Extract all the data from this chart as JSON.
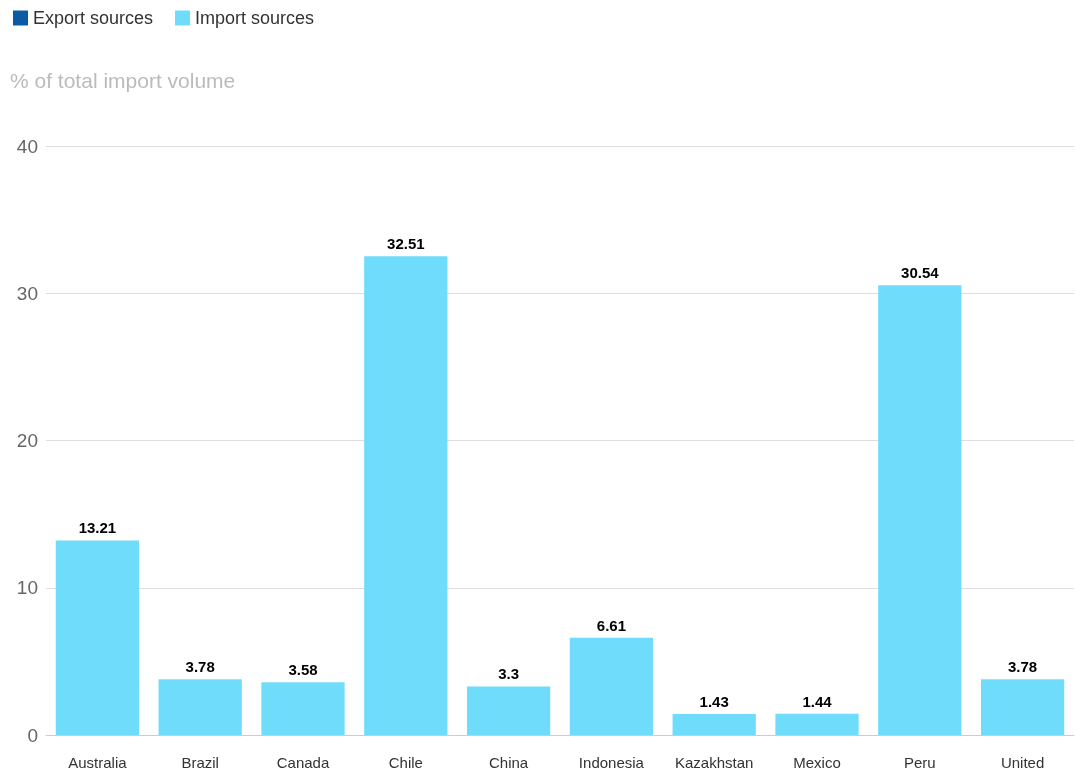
{
  "chart_data": {
    "type": "bar",
    "ylabel": "% of total import volume",
    "categories": [
      "Australia",
      "Brazil",
      "Canada",
      "Chile",
      "China",
      "Indonesia",
      "Kazakhstan",
      "Mexico",
      "Peru",
      "United"
    ],
    "series": [
      {
        "name": "Export sources",
        "color": "#0b5aa6",
        "values": [
          null,
          null,
          null,
          null,
          null,
          null,
          null,
          null,
          null,
          null
        ]
      },
      {
        "name": "Import sources",
        "color": "#6fdcfb",
        "values": [
          13.21,
          3.78,
          3.58,
          32.51,
          3.3,
          6.61,
          1.43,
          1.44,
          30.54,
          3.78
        ]
      }
    ],
    "ylim": [
      0,
      40
    ],
    "yticks": [
      0,
      10,
      20,
      30,
      40
    ],
    "grid": "y",
    "legend": "top left",
    "data_labels": true
  }
}
